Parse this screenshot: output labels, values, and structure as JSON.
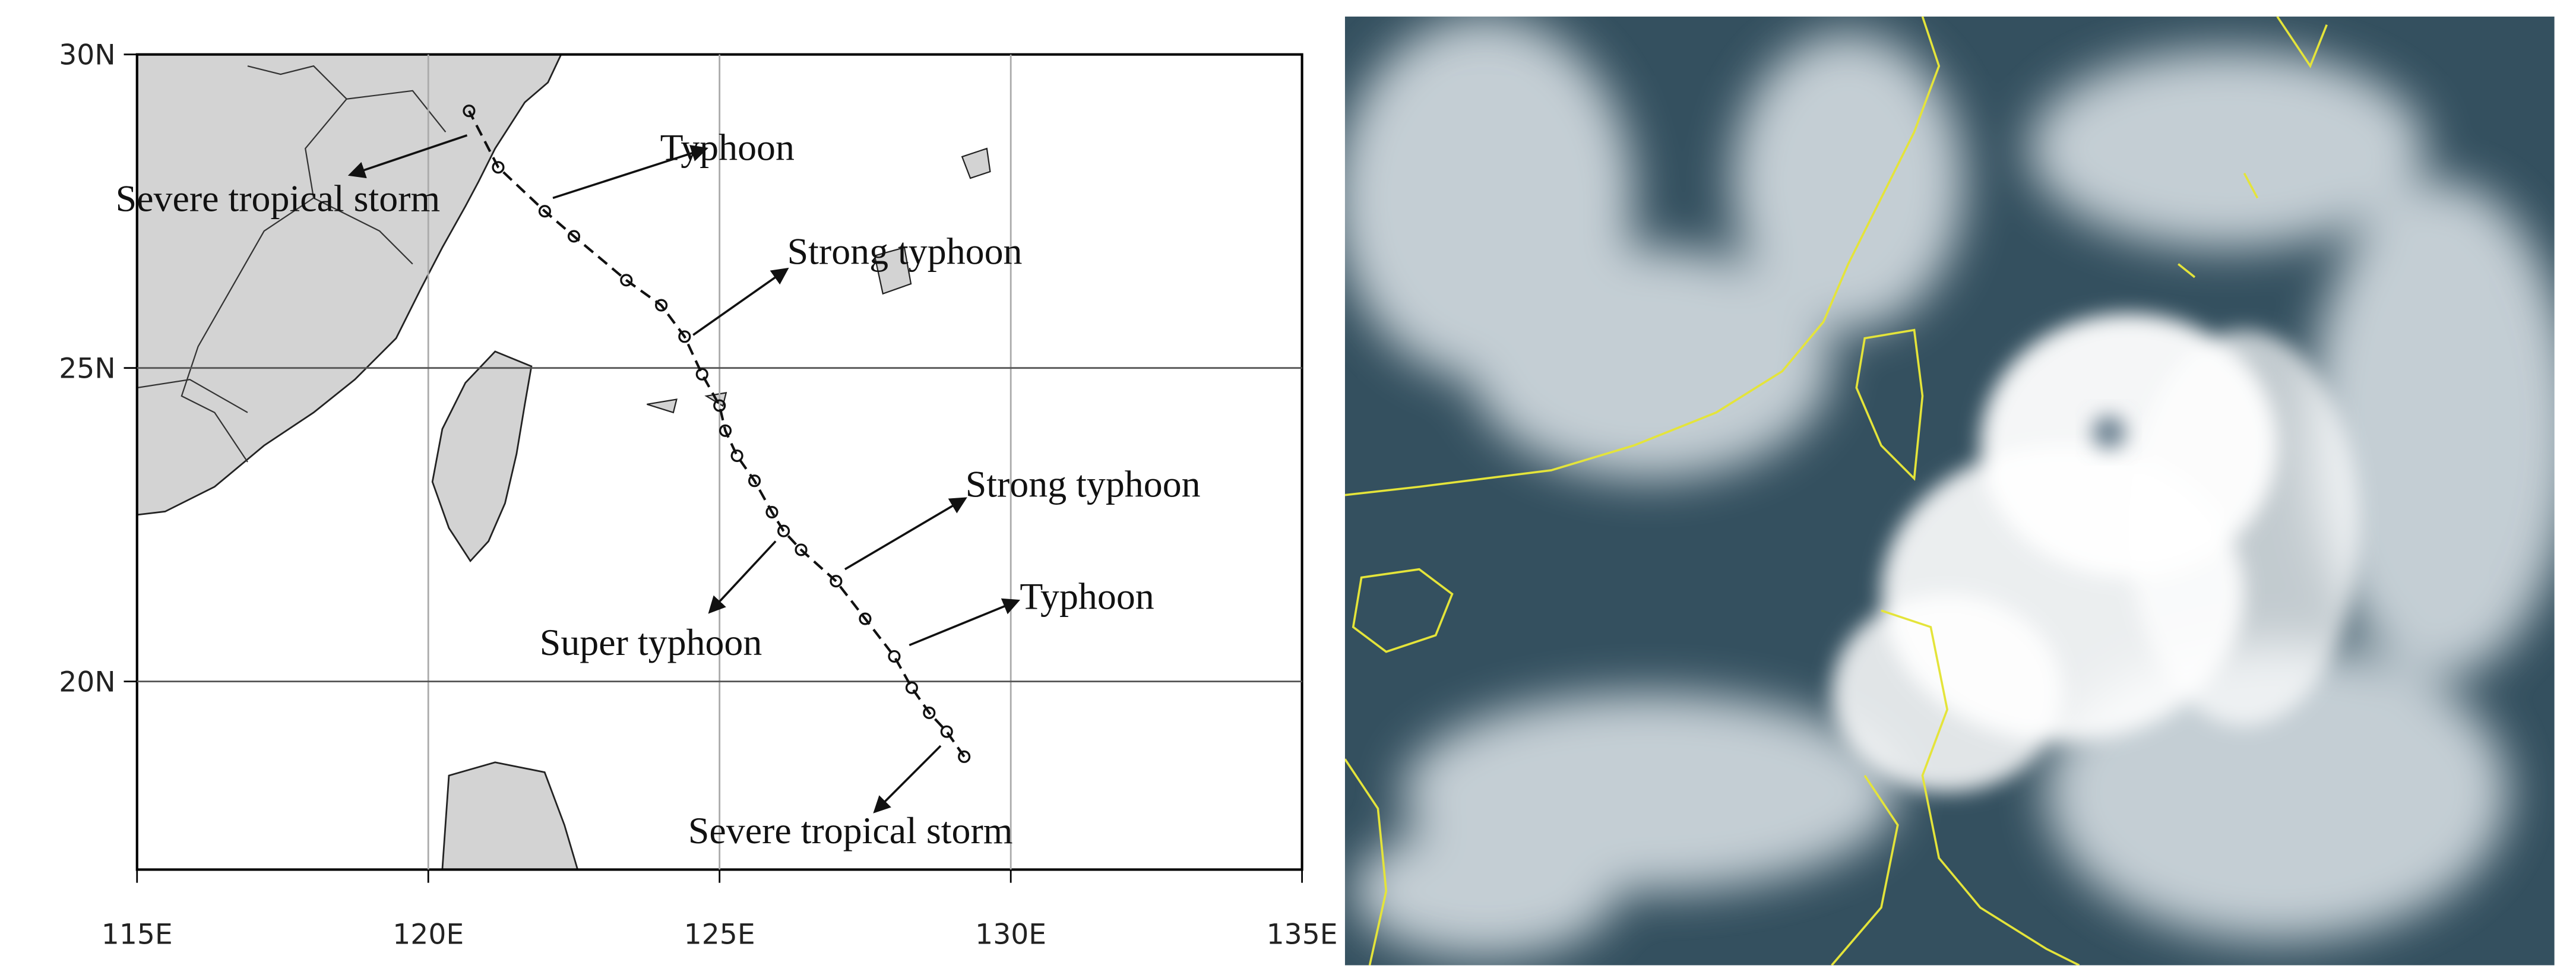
{
  "chart_data": {
    "type": "map",
    "xlim": [
      115,
      135
    ],
    "ylim": [
      17,
      30
    ],
    "xticks": [
      {
        "value": 115,
        "label": "115E"
      },
      {
        "value": 120,
        "label": "120E"
      },
      {
        "value": 125,
        "label": "125E"
      },
      {
        "value": 130,
        "label": "130E"
      },
      {
        "value": 135,
        "label": "135E"
      }
    ],
    "yticks": [
      {
        "value": 20,
        "label": "20N"
      },
      {
        "value": 25,
        "label": "25N"
      },
      {
        "value": 30,
        "label": "30N"
      }
    ],
    "grid": true,
    "track": {
      "x": [
        129.2,
        128.9,
        128.6,
        128.3,
        128.0,
        127.5,
        127.0,
        126.4,
        126.1,
        125.9,
        125.6,
        125.3,
        125.1,
        125.0,
        124.7,
        124.4,
        124.0,
        123.4,
        122.5,
        122.0,
        121.2,
        120.7
      ],
      "y": [
        18.8,
        19.2,
        19.5,
        19.9,
        20.4,
        21.0,
        21.6,
        22.1,
        22.4,
        22.7,
        23.2,
        23.6,
        24.0,
        24.4,
        24.9,
        25.5,
        26.0,
        26.4,
        27.1,
        27.5,
        28.2,
        29.1
      ]
    },
    "annotations": [
      "Severe tropical storm",
      "Typhoon",
      "Strong typhoon",
      "Strong typhoon",
      "Typhoon",
      "Super typhoon",
      "Severe tropical storm"
    ]
  }
}
